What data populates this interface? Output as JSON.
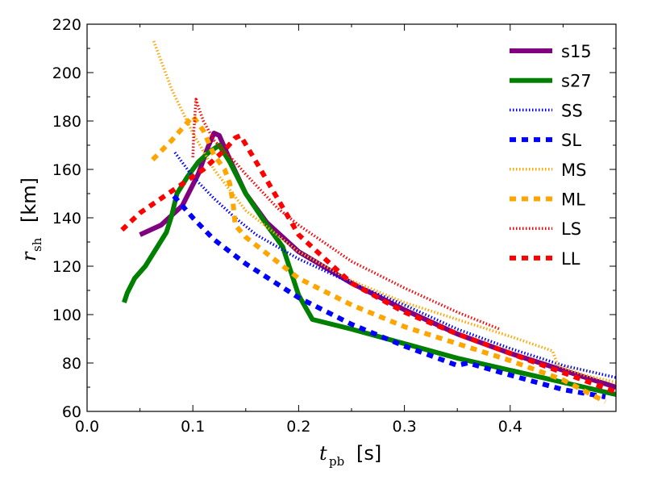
{
  "chart_data": {
    "type": "line",
    "title": "",
    "xlabel": {
      "symbol": "t",
      "subscript": "pb",
      "unit": "[s]"
    },
    "ylabel": {
      "symbol": "r",
      "subscript": "sh",
      "unit": "[km]"
    },
    "xlim": [
      0.0,
      0.5
    ],
    "ylim": [
      60,
      220
    ],
    "xticks": [
      0.0,
      0.1,
      0.2,
      0.3,
      0.4
    ],
    "xtick_labels": [
      "0.0",
      "0.1",
      "0.2",
      "0.3",
      "0.4"
    ],
    "yticks": [
      60,
      80,
      100,
      120,
      140,
      160,
      180,
      200,
      220
    ],
    "ytick_labels": [
      "60",
      "80",
      "100",
      "120",
      "140",
      "160",
      "180",
      "200",
      "220"
    ],
    "grid": false,
    "legend_position": "top-right",
    "series": [
      {
        "name": "s15",
        "color": "#800080",
        "style": "solid-thick",
        "x": [
          0.05,
          0.07,
          0.09,
          0.105,
          0.115,
          0.12,
          0.125,
          0.135,
          0.15,
          0.17,
          0.2,
          0.25,
          0.3,
          0.35,
          0.4,
          0.45,
          0.5
        ],
        "y": [
          133,
          137,
          145,
          158,
          170,
          175,
          174,
          164,
          150,
          138,
          126,
          113,
          102,
          92,
          84,
          77,
          70
        ]
      },
      {
        "name": "s27",
        "color": "#008000",
        "style": "solid-thick",
        "x": [
          0.035,
          0.038,
          0.045,
          0.055,
          0.065,
          0.075,
          0.08,
          0.085,
          0.095,
          0.105,
          0.115,
          0.125,
          0.135,
          0.15,
          0.17,
          0.185,
          0.2,
          0.213,
          0.25,
          0.3,
          0.35,
          0.4,
          0.45,
          0.5
        ],
        "y": [
          105,
          109,
          115,
          120,
          127,
          134,
          141,
          150,
          157,
          163,
          167,
          170,
          163,
          150,
          137,
          128,
          108,
          98,
          94,
          88,
          82,
          77,
          72,
          67
        ]
      },
      {
        "name": "SS",
        "color": "#0000ff",
        "style": "dotted",
        "x": [
          0.083,
          0.1,
          0.12,
          0.14,
          0.16,
          0.2,
          0.25,
          0.3,
          0.35,
          0.4,
          0.45,
          0.5
        ],
        "y": [
          167,
          157,
          148,
          140,
          133,
          123,
          113,
          104,
          94,
          86,
          79,
          74
        ]
      },
      {
        "name": "SL",
        "color": "#0000ff",
        "style": "dashed",
        "x": [
          0.082,
          0.1,
          0.12,
          0.15,
          0.2,
          0.25,
          0.3,
          0.35,
          0.36,
          0.4,
          0.45,
          0.49
        ],
        "y": [
          149,
          140,
          131,
          121,
          107,
          96,
          87,
          79,
          80,
          75,
          69,
          66
        ]
      },
      {
        "name": "MS",
        "color": "#ffa500",
        "style": "dotted",
        "x": [
          0.063,
          0.08,
          0.1,
          0.12,
          0.15,
          0.2,
          0.25,
          0.3,
          0.35,
          0.4,
          0.44,
          0.445,
          0.47,
          0.5
        ],
        "y": [
          213,
          193,
          175,
          160,
          143,
          126,
          114,
          105,
          98,
          91,
          85,
          79,
          75,
          72
        ]
      },
      {
        "name": "ML",
        "color": "#ffa500",
        "style": "dashed",
        "x": [
          0.062,
          0.08,
          0.1,
          0.11,
          0.12,
          0.13,
          0.135,
          0.138,
          0.14,
          0.15,
          0.2,
          0.25,
          0.3,
          0.35,
          0.4,
          0.45,
          0.49
        ],
        "y": [
          164,
          172,
          182,
          176,
          166,
          160,
          154,
          146,
          137,
          132,
          115,
          104,
          95,
          88,
          81,
          73,
          64
        ]
      },
      {
        "name": "LS",
        "color": "#ff0000",
        "style": "dotted",
        "x": [
          0.1,
          0.101,
          0.103,
          0.105,
          0.11,
          0.12,
          0.14,
          0.15,
          0.18,
          0.2,
          0.25,
          0.3,
          0.35,
          0.39
        ],
        "y": [
          165,
          176,
          189,
          186,
          180,
          172,
          163,
          158,
          144,
          137,
          122,
          111,
          101,
          94
        ]
      },
      {
        "name": "LL",
        "color": "#ff0000",
        "style": "dashed",
        "x": [
          0.033,
          0.05,
          0.07,
          0.09,
          0.11,
          0.13,
          0.14,
          0.145,
          0.16,
          0.2,
          0.25,
          0.3,
          0.35,
          0.4,
          0.45,
          0.5
        ],
        "y": [
          135,
          142,
          148,
          154,
          160,
          168,
          173,
          174,
          163,
          133,
          113,
          101,
          92,
          84,
          76,
          68
        ]
      }
    ]
  }
}
